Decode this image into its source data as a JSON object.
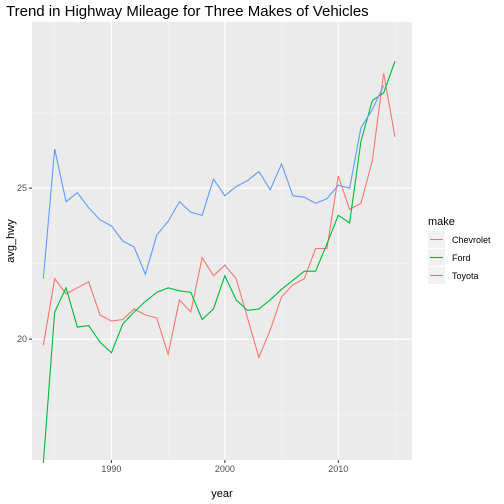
{
  "chart_data": {
    "type": "line",
    "title": "Trend in Highway Mileage for Three Makes of Vehicles",
    "xlabel": "year",
    "ylabel": "avg_hwy",
    "x_ticks": [
      1990,
      2000,
      2010
    ],
    "y_ticks": [
      20,
      25
    ],
    "xlim": [
      1983,
      2016.5
    ],
    "ylim": [
      16.0,
      30.5
    ],
    "grid": true,
    "legend": {
      "title": "make",
      "placement": "right"
    },
    "x": [
      1984,
      1985,
      1986,
      1987,
      1988,
      1989,
      1990,
      1991,
      1992,
      1993,
      1994,
      1995,
      1996,
      1997,
      1998,
      1999,
      2000,
      2001,
      2002,
      2003,
      2004,
      2005,
      2006,
      2007,
      2008,
      2009,
      2010,
      2011,
      2012,
      2013,
      2014,
      2015
    ],
    "series": [
      {
        "name": "Chevrolet",
        "color": "#F8766D",
        "values": [
          19.8,
          22.0,
          21.5,
          21.7,
          21.9,
          20.8,
          20.6,
          20.65,
          21.0,
          20.8,
          20.7,
          19.5,
          21.3,
          20.9,
          22.7,
          22.1,
          22.45,
          22.0,
          20.7,
          19.4,
          20.3,
          21.4,
          21.8,
          22.0,
          23.0,
          23.0,
          25.4,
          24.3,
          24.5,
          25.9,
          28.8,
          26.7
        ]
      },
      {
        "name": "Ford",
        "color": "#00BA38",
        "values": [
          15.9,
          20.9,
          21.7,
          20.4,
          20.45,
          19.9,
          19.55,
          20.5,
          20.9,
          21.25,
          21.55,
          21.7,
          21.6,
          21.55,
          20.65,
          21.0,
          22.1,
          21.3,
          20.95,
          21.0,
          21.3,
          21.65,
          21.95,
          22.25,
          22.25,
          23.15,
          24.1,
          23.85,
          26.55,
          27.9,
          28.15,
          29.2
        ]
      },
      {
        "name": "Toyota",
        "color": "#619CFF",
        "values": [
          22.0,
          26.3,
          24.55,
          24.85,
          24.35,
          23.95,
          23.75,
          23.25,
          23.05,
          22.15,
          23.45,
          23.9,
          24.55,
          24.2,
          24.1,
          25.3,
          24.75,
          25.05,
          25.25,
          25.55,
          24.95,
          25.8,
          24.75,
          24.7,
          24.5,
          24.65,
          25.1,
          25.0,
          27.0,
          27.6,
          28.4,
          null
        ]
      }
    ]
  }
}
